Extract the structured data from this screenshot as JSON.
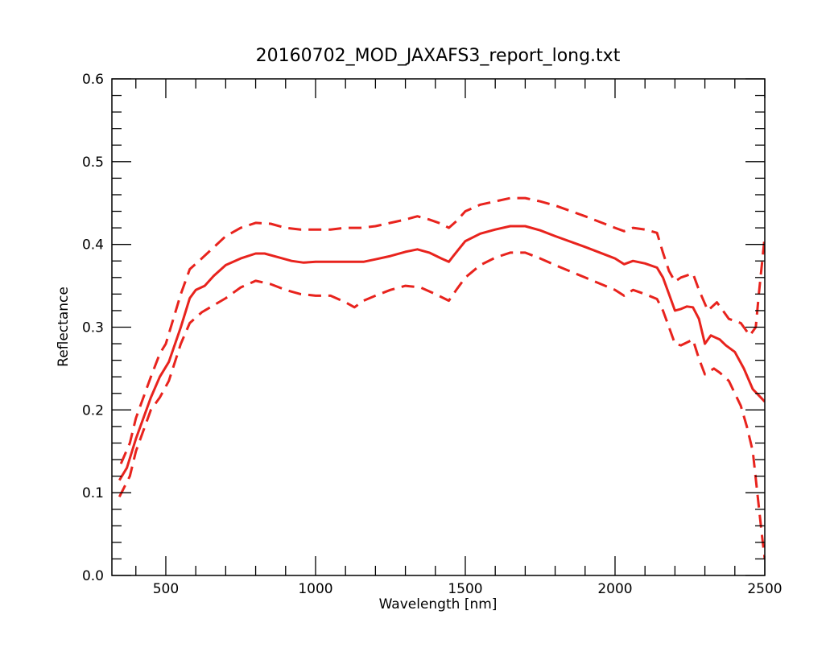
{
  "chart_data": {
    "type": "line",
    "title": "20160702_MOD_JAXAFS3_report_long.txt",
    "xlabel": "Wavelength [nm]",
    "ylabel": "Reflectance",
    "xlim": [
      320,
      2500
    ],
    "ylim": [
      0.0,
      0.6
    ],
    "x_ticks": [
      500,
      1000,
      1500,
      2000,
      2500
    ],
    "x_tick_labels": [
      "500",
      "1000",
      "1500",
      "2000",
      "2500"
    ],
    "y_ticks": [
      0.0,
      0.1,
      0.2,
      0.3,
      0.4,
      0.5,
      0.6
    ],
    "y_tick_labels": [
      "0.0",
      "0.1",
      "0.2",
      "0.3",
      "0.4",
      "0.5",
      "0.6"
    ],
    "x_minor_step": 100,
    "y_minor_step": 0.02,
    "grid": false,
    "color": "#e8231d",
    "series": [
      {
        "style": "dashed",
        "points": [
          [
            350,
            0.135
          ],
          [
            380,
            0.16
          ],
          [
            400,
            0.19
          ],
          [
            450,
            0.24
          ],
          [
            480,
            0.268
          ],
          [
            500,
            0.28
          ],
          [
            550,
            0.34
          ],
          [
            580,
            0.37
          ],
          [
            620,
            0.383
          ],
          [
            700,
            0.41
          ],
          [
            750,
            0.42
          ],
          [
            800,
            0.426
          ],
          [
            850,
            0.425
          ],
          [
            900,
            0.42
          ],
          [
            950,
            0.418
          ],
          [
            1000,
            0.418
          ],
          [
            1050,
            0.418
          ],
          [
            1100,
            0.42
          ],
          [
            1150,
            0.42
          ],
          [
            1200,
            0.422
          ],
          [
            1250,
            0.426
          ],
          [
            1300,
            0.43
          ],
          [
            1340,
            0.434
          ],
          [
            1380,
            0.43
          ],
          [
            1420,
            0.425
          ],
          [
            1445,
            0.42
          ],
          [
            1470,
            0.428
          ],
          [
            1500,
            0.44
          ],
          [
            1550,
            0.448
          ],
          [
            1600,
            0.452
          ],
          [
            1650,
            0.456
          ],
          [
            1700,
            0.456
          ],
          [
            1750,
            0.452
          ],
          [
            1800,
            0.447
          ],
          [
            1900,
            0.434
          ],
          [
            2000,
            0.42
          ],
          [
            2030,
            0.416
          ],
          [
            2060,
            0.42
          ],
          [
            2100,
            0.418
          ],
          [
            2140,
            0.414
          ],
          [
            2160,
            0.39
          ],
          [
            2180,
            0.368
          ],
          [
            2200,
            0.355
          ],
          [
            2220,
            0.36
          ],
          [
            2260,
            0.365
          ],
          [
            2280,
            0.345
          ],
          [
            2310,
            0.32
          ],
          [
            2340,
            0.33
          ],
          [
            2380,
            0.31
          ],
          [
            2420,
            0.305
          ],
          [
            2450,
            0.29
          ],
          [
            2470,
            0.3
          ],
          [
            2480,
            0.34
          ],
          [
            2500,
            0.41
          ]
        ]
      },
      {
        "style": "solid",
        "points": [
          [
            345,
            0.115
          ],
          [
            370,
            0.13
          ],
          [
            400,
            0.165
          ],
          [
            450,
            0.215
          ],
          [
            480,
            0.24
          ],
          [
            510,
            0.258
          ],
          [
            550,
            0.3
          ],
          [
            580,
            0.335
          ],
          [
            600,
            0.345
          ],
          [
            630,
            0.35
          ],
          [
            660,
            0.362
          ],
          [
            700,
            0.375
          ],
          [
            750,
            0.383
          ],
          [
            800,
            0.389
          ],
          [
            830,
            0.389
          ],
          [
            870,
            0.385
          ],
          [
            920,
            0.38
          ],
          [
            960,
            0.378
          ],
          [
            1000,
            0.379
          ],
          [
            1050,
            0.379
          ],
          [
            1100,
            0.379
          ],
          [
            1160,
            0.379
          ],
          [
            1200,
            0.382
          ],
          [
            1250,
            0.386
          ],
          [
            1300,
            0.391
          ],
          [
            1340,
            0.394
          ],
          [
            1380,
            0.39
          ],
          [
            1420,
            0.383
          ],
          [
            1445,
            0.379
          ],
          [
            1460,
            0.386
          ],
          [
            1480,
            0.395
          ],
          [
            1500,
            0.404
          ],
          [
            1550,
            0.413
          ],
          [
            1600,
            0.418
          ],
          [
            1650,
            0.422
          ],
          [
            1700,
            0.422
          ],
          [
            1750,
            0.417
          ],
          [
            1800,
            0.41
          ],
          [
            1900,
            0.397
          ],
          [
            2000,
            0.383
          ],
          [
            2030,
            0.376
          ],
          [
            2060,
            0.38
          ],
          [
            2100,
            0.377
          ],
          [
            2140,
            0.372
          ],
          [
            2160,
            0.36
          ],
          [
            2180,
            0.34
          ],
          [
            2200,
            0.32
          ],
          [
            2220,
            0.322
          ],
          [
            2240,
            0.325
          ],
          [
            2260,
            0.324
          ],
          [
            2280,
            0.31
          ],
          [
            2300,
            0.28
          ],
          [
            2320,
            0.29
          ],
          [
            2350,
            0.285
          ],
          [
            2370,
            0.278
          ],
          [
            2400,
            0.27
          ],
          [
            2430,
            0.25
          ],
          [
            2460,
            0.225
          ],
          [
            2500,
            0.21
          ]
        ]
      },
      {
        "style": "dashed",
        "points": [
          [
            345,
            0.095
          ],
          [
            380,
            0.12
          ],
          [
            400,
            0.15
          ],
          [
            450,
            0.2
          ],
          [
            480,
            0.215
          ],
          [
            510,
            0.235
          ],
          [
            550,
            0.28
          ],
          [
            580,
            0.305
          ],
          [
            620,
            0.318
          ],
          [
            700,
            0.335
          ],
          [
            750,
            0.348
          ],
          [
            800,
            0.356
          ],
          [
            850,
            0.352
          ],
          [
            900,
            0.345
          ],
          [
            950,
            0.34
          ],
          [
            1000,
            0.338
          ],
          [
            1050,
            0.338
          ],
          [
            1100,
            0.33
          ],
          [
            1130,
            0.324
          ],
          [
            1160,
            0.332
          ],
          [
            1200,
            0.338
          ],
          [
            1250,
            0.345
          ],
          [
            1300,
            0.35
          ],
          [
            1350,
            0.348
          ],
          [
            1400,
            0.34
          ],
          [
            1445,
            0.332
          ],
          [
            1470,
            0.345
          ],
          [
            1500,
            0.36
          ],
          [
            1550,
            0.375
          ],
          [
            1600,
            0.384
          ],
          [
            1650,
            0.39
          ],
          [
            1700,
            0.39
          ],
          [
            1750,
            0.383
          ],
          [
            1800,
            0.375
          ],
          [
            1900,
            0.36
          ],
          [
            2000,
            0.345
          ],
          [
            2030,
            0.338
          ],
          [
            2060,
            0.345
          ],
          [
            2100,
            0.34
          ],
          [
            2140,
            0.334
          ],
          [
            2160,
            0.32
          ],
          [
            2180,
            0.3
          ],
          [
            2200,
            0.28
          ],
          [
            2220,
            0.278
          ],
          [
            2260,
            0.285
          ],
          [
            2280,
            0.262
          ],
          [
            2300,
            0.243
          ],
          [
            2330,
            0.25
          ],
          [
            2350,
            0.245
          ],
          [
            2380,
            0.235
          ],
          [
            2400,
            0.22
          ],
          [
            2420,
            0.205
          ],
          [
            2440,
            0.18
          ],
          [
            2460,
            0.15
          ],
          [
            2475,
            0.1
          ],
          [
            2490,
            0.05
          ],
          [
            2500,
            0.02
          ]
        ]
      }
    ]
  }
}
